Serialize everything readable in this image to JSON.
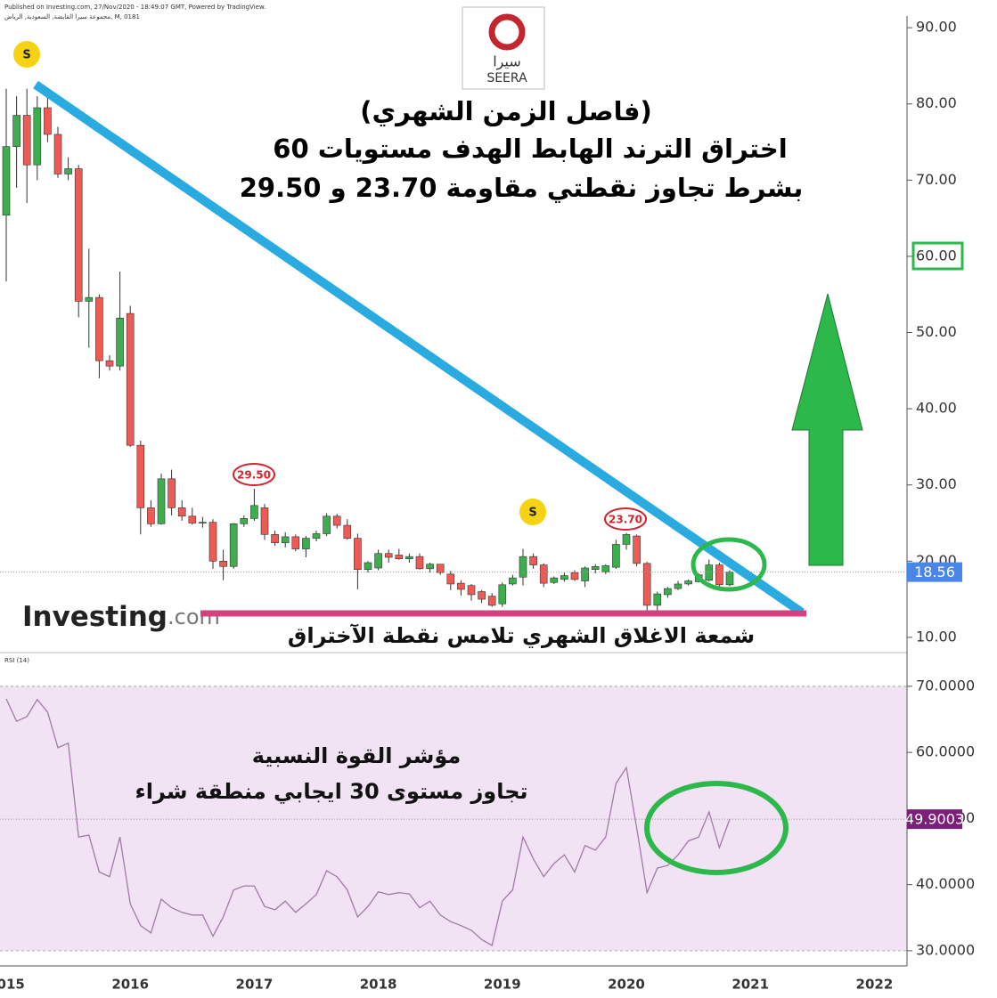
{
  "header": {
    "source": "Published on Investing.com, 27/Nov/2020 - 18:49:07 GMT, Powered by TradingView.",
    "instrument": "مجموعة سيرا القابضة, السعودية, الرياض, M, 0181"
  },
  "logo": {
    "symbol_text": "سيرا",
    "name": "SEERA"
  },
  "watermark": {
    "brand": "Investing",
    "domain": ".com"
  },
  "chart_data": [
    {
      "type": "candlestick",
      "categories": [
        "2015",
        null,
        null,
        null,
        null,
        null,
        null,
        null,
        null,
        null,
        null,
        null,
        "2016",
        null,
        null,
        null,
        null,
        null,
        null,
        null,
        null,
        null,
        null,
        null,
        "2017",
        null,
        null,
        null,
        null,
        null,
        null,
        null,
        null,
        null,
        null,
        null,
        "2018",
        null,
        null,
        null,
        null,
        null,
        null,
        null,
        null,
        null,
        null,
        null,
        "2019",
        null,
        null,
        null,
        null,
        null,
        null,
        null,
        null,
        null,
        null,
        null,
        "2020",
        null,
        null,
        null,
        null,
        null,
        null,
        null,
        null,
        null,
        null,
        null,
        "2021",
        null,
        null,
        null,
        null,
        null,
        null,
        null,
        null,
        null,
        null,
        null,
        "2022"
      ],
      "open": [
        65.4,
        74.4,
        78.5,
        72,
        79.5,
        76,
        70.8,
        71.5,
        54.1,
        54.6,
        46.3,
        45.6,
        52.5,
        35.2,
        27,
        24.9,
        30.8,
        27,
        25.9,
        25,
        25.1,
        20,
        19.3,
        24.9,
        25.6,
        27,
        23.5,
        22.4,
        23.2,
        21.6,
        23,
        23.6,
        25.9,
        24.7,
        23,
        18.9,
        19.1,
        21,
        20.8,
        20.3,
        20.6,
        19,
        19.6,
        18.3,
        17.1,
        16.8,
        16,
        15.4,
        14.4,
        17,
        17.9,
        20.6,
        19.5,
        17.2,
        17.6,
        18.5,
        17.4,
        18.9,
        18.6,
        19.2,
        22.2,
        23.3,
        19.7,
        14.2,
        15.6,
        16.4,
        17,
        17.3,
        17.5,
        19.5,
        16.9,
        null,
        null,
        null,
        null,
        null,
        null,
        null,
        null,
        null,
        null,
        null,
        null,
        null,
        null
      ],
      "high": [
        82,
        81,
        82,
        81,
        81.5,
        77,
        73,
        72,
        61,
        55,
        47,
        58,
        53.5,
        35.8,
        28,
        31.5,
        32,
        28,
        27,
        25.8,
        25.5,
        21.5,
        25,
        26,
        29.5,
        27.5,
        24,
        23.8,
        23.5,
        23.3,
        24,
        26.3,
        26.2,
        25.5,
        23.6,
        20,
        21.5,
        21.5,
        21.6,
        21,
        21,
        19.8,
        19.6,
        18.7,
        17.5,
        17,
        16.2,
        15.8,
        17.2,
        18.2,
        21.6,
        21,
        19.7,
        18,
        18.5,
        18.8,
        19.3,
        19.6,
        19.6,
        22.8,
        23.7,
        23.5,
        19.9,
        16,
        16.6,
        17.4,
        17.6,
        18.4,
        20.2,
        19.8,
        18.8,
        null,
        null,
        null,
        null,
        null,
        null,
        null,
        null,
        null,
        null,
        null,
        null,
        null,
        null
      ],
      "low": [
        56.7,
        69,
        67,
        70,
        75,
        70.3,
        70,
        52,
        48,
        44,
        45,
        45,
        35,
        23.5,
        24.5,
        24.8,
        26,
        25.3,
        24.8,
        24.4,
        19,
        17.5,
        19,
        24.5,
        25.3,
        22.8,
        22,
        21.8,
        21.3,
        20.5,
        22.6,
        23.3,
        24.3,
        22.8,
        16.3,
        18.5,
        18.8,
        19.8,
        20.2,
        19.8,
        18.9,
        18.5,
        18.2,
        16.2,
        15.5,
        14.8,
        14.5,
        14,
        14,
        16.8,
        16.8,
        19,
        16.6,
        17,
        17.3,
        17.4,
        16.6,
        18.4,
        18.3,
        19,
        21.5,
        19.3,
        13.3,
        13.5,
        15.2,
        16.2,
        16.8,
        17.2,
        17.3,
        16.5,
        16.7,
        null,
        null,
        null,
        null,
        null,
        null,
        null,
        null,
        null,
        null,
        null,
        null,
        null,
        null
      ],
      "close": [
        74.4,
        78.5,
        72,
        79.5,
        76,
        70.8,
        71.5,
        54.1,
        54.6,
        46.3,
        45.6,
        51.9,
        35.2,
        27,
        24.9,
        30.8,
        27,
        25.9,
        25,
        25.1,
        20,
        19.3,
        24.9,
        25.6,
        27.3,
        23.5,
        22.4,
        23.2,
        21.6,
        23,
        23.6,
        25.9,
        24.7,
        23,
        18.9,
        19.8,
        21,
        20.5,
        20.3,
        20.6,
        19,
        19.6,
        18.5,
        17,
        16.3,
        15.6,
        15,
        14.2,
        16.9,
        17.8,
        20.6,
        19.5,
        17.1,
        17.8,
        18.1,
        17.6,
        19.1,
        19.3,
        19.4,
        22.2,
        23.5,
        19.7,
        14.2,
        15.7,
        16.4,
        17,
        17.4,
        18.2,
        19.5,
        16.9,
        18.56,
        null,
        null,
        null,
        null,
        null,
        null,
        null,
        null,
        null,
        null,
        null,
        null,
        null,
        null
      ],
      "up_color": "#3cae4e",
      "down_color": "#ef5a55",
      "wick_color": "#333333",
      "last_value_color": "#4a86e8",
      "ylim": [
        8,
        91.3
      ],
      "yticks": [
        {
          "value": 10,
          "label": "10.00"
        },
        {
          "value": 20,
          "label": "20.00"
        },
        {
          "value": 30,
          "label": "30.00"
        },
        {
          "value": 40,
          "label": "40.00"
        },
        {
          "value": 50,
          "label": "50.00"
        },
        {
          "value": 60,
          "label": "60.00"
        },
        {
          "value": 70,
          "label": "70.00"
        },
        {
          "value": 80,
          "label": "80.00"
        },
        {
          "value": 90,
          "label": "90.00"
        }
      ],
      "annotations": [
        "(فاصل الزمن الشهري)",
        "اختراق الترند الهابط الهدف مستويات 60",
        "بشرط تجاوز نقطتي مقاومة 23.70 و 29.50",
        "شمعة الاغلاق الشهري تلامس نقطة الآختراق"
      ],
      "resistance_labels": [
        "29.50",
        "23.70"
      ],
      "event_markers": [
        "S",
        "S"
      ]
    },
    {
      "type": "line",
      "title": "RSI (14)",
      "values": [
        68.1,
        64.7,
        65.4,
        68,
        66.1,
        60.7,
        61.4,
        47.2,
        47.5,
        41.9,
        41.2,
        47.2,
        37.1,
        33.8,
        32.7,
        37.8,
        36.5,
        35.8,
        35.4,
        35.4,
        32.2,
        35.1,
        39.2,
        39.8,
        39.8,
        36.7,
        36.2,
        37.5,
        35.8,
        37.1,
        38.5,
        42.1,
        41.2,
        39.2,
        35.1,
        36.7,
        38.9,
        38.5,
        38.8,
        38.6,
        36.5,
        37.5,
        35.4,
        34.4,
        33.8,
        33.1,
        31.7,
        30.8,
        37.5,
        39.2,
        47.2,
        43.9,
        41.2,
        43.2,
        44.5,
        41.9,
        45.9,
        45.2,
        47.2,
        55.3,
        57.7,
        48.6,
        38.8,
        42.5,
        42.9,
        44.5,
        46.6,
        47.2,
        51,
        45.6,
        49.9003,
        null,
        null,
        null,
        null,
        null,
        null,
        null,
        null,
        null,
        null,
        null,
        null,
        null,
        null
      ],
      "color": "#a07aa6",
      "band": [
        30,
        70
      ],
      "band_color": "#f1e3f3",
      "last_value_color": "#7b1f7b",
      "ylim": [
        27.7,
        75.1
      ],
      "yticks": [
        {
          "value": 30,
          "label": "30.0000"
        },
        {
          "value": 40,
          "label": "40.0000"
        },
        {
          "value": 50,
          "label": "50.0000"
        },
        {
          "value": 60,
          "label": "60.0000"
        },
        {
          "value": 70,
          "label": "70.0000"
        }
      ],
      "annotations": [
        "مؤشر القوة النسبية",
        "تجاوز مستوى 30 ايجابي منطقة شراء"
      ]
    }
  ]
}
